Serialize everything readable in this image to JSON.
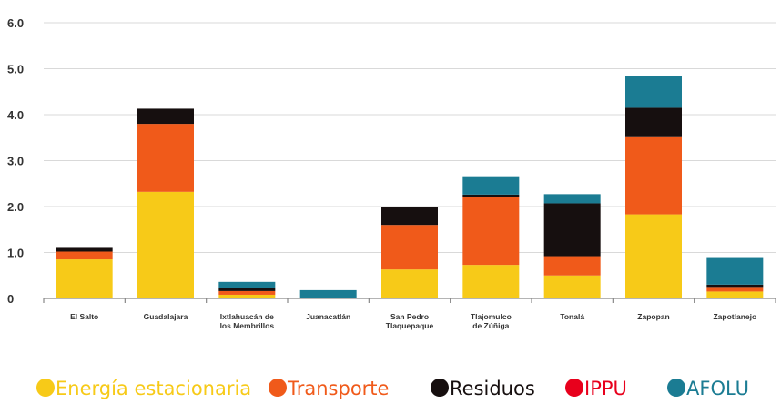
{
  "chart_data": {
    "type": "bar",
    "stacked": true,
    "categories": [
      [
        "El Salto"
      ],
      [
        "Guadalajara"
      ],
      [
        "Ixtlahuacán de",
        "los Membrillos"
      ],
      [
        "Juanacatlán"
      ],
      [
        "San Pedro",
        "Tlaquepaque"
      ],
      [
        "Tlajomulco",
        "de Zúñiga"
      ],
      [
        "Tonalá"
      ],
      [
        "Zapopan"
      ],
      [
        "Zapotlanejo"
      ]
    ],
    "series": [
      {
        "name": "Energía estacionaria",
        "color": "#f7ca18",
        "values": [
          0.85,
          2.32,
          0.08,
          0.0,
          0.63,
          0.73,
          0.5,
          1.83,
          0.15
        ]
      },
      {
        "name": "Transporte",
        "color": "#f05a1a",
        "values": [
          0.17,
          1.48,
          0.08,
          0.0,
          0.97,
          1.47,
          0.42,
          1.68,
          0.1
        ]
      },
      {
        "name": "Residuos",
        "color": "#160f0f",
        "values": [
          0.08,
          0.33,
          0.06,
          0.0,
          0.4,
          0.06,
          1.15,
          0.64,
          0.05
        ]
      },
      {
        "name": "IPPU",
        "color": "#e8001c",
        "values": [
          0.0,
          0.0,
          0.0,
          0.0,
          0.0,
          0.0,
          0.0,
          0.0,
          0.0
        ]
      },
      {
        "name": "AFOLU",
        "color": "#1b7c93",
        "values": [
          0.0,
          0.0,
          0.14,
          0.18,
          0.0,
          0.4,
          0.2,
          0.7,
          0.6
        ]
      }
    ],
    "y_ticks": [
      "0",
      "1.0",
      "2.0",
      "3.0",
      "4.0",
      "5.0",
      "6.0"
    ],
    "ylim": [
      0,
      6
    ],
    "grid": true,
    "legend_position": "bottom"
  }
}
